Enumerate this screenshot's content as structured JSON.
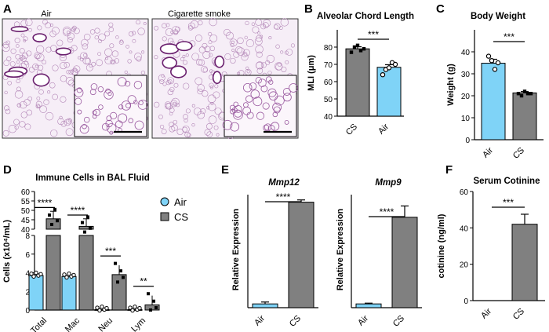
{
  "panels": {
    "A": {
      "letter": "A",
      "labels": [
        "Air",
        "Cigarette smoke"
      ]
    },
    "B": {
      "letter": "B",
      "title": "Alveolar Chord Length",
      "ylabel": "MLI (μm)",
      "ticks": [
        "40",
        "50",
        "60",
        "70",
        "80"
      ],
      "xticks": [
        "CS",
        "Air"
      ],
      "sig": "***"
    },
    "C": {
      "letter": "C",
      "title": "Body Weight",
      "ylabel": "Weight (g)",
      "ticks": [
        "0",
        "10",
        "20",
        "30",
        "40"
      ],
      "xticks": [
        "Air",
        "CS"
      ],
      "sig": "***"
    },
    "D": {
      "letter": "D",
      "title": "Immune Cells in BAL Fluid",
      "ylabel": "Cells (x10⁴/mL)",
      "ticks_upper": [
        "40",
        "45",
        "50",
        "55",
        "60"
      ],
      "ticks_lower": [
        "0",
        "2",
        "4",
        "6",
        "8"
      ],
      "xticks": [
        "Total",
        "Mac",
        "Neu",
        "Lym"
      ],
      "sigs": [
        "****",
        "****",
        "***",
        "**"
      ],
      "legend": [
        "Air",
        "CS"
      ]
    },
    "E": {
      "letter": "E",
      "title1": "Mmp12",
      "title2": "Mmp9",
      "ylabel": "Relative Expression",
      "xticks": [
        "Air",
        "CS"
      ],
      "sigs": [
        "****",
        "****"
      ]
    },
    "F": {
      "letter": "F",
      "title": "Serum Cotinine",
      "ylabel": "cotinine (ng/ml)",
      "ticks": [
        "0",
        "20",
        "40",
        "60"
      ],
      "xticks": [
        "Air",
        "CS"
      ],
      "sig": "***"
    }
  },
  "colors": {
    "air": "#7fd3f7",
    "cs": "#808080",
    "stain": "#6a1f6e",
    "tissue": "#f6eef7"
  },
  "chart_data": [
    {
      "type": "bar",
      "panel": "B",
      "title": "Alveolar Chord Length",
      "ylabel": "MLI (μm)",
      "categories": [
        "CS",
        "Air"
      ],
      "values": [
        79,
        68.3
      ],
      "errors": [
        1.2,
        1.5
      ],
      "ylim": [
        40,
        90
      ],
      "points": [
        [
          77,
          80,
          81,
          78,
          79
        ],
        [
          64,
          67,
          68,
          71,
          70
        ]
      ]
    },
    {
      "type": "bar",
      "panel": "C",
      "title": "Body Weight",
      "ylabel": "Weight (g)",
      "categories": [
        "Air",
        "CS"
      ],
      "values": [
        34.8,
        21.3
      ],
      "errors": [
        1.8,
        0.6
      ],
      "ylim": [
        0,
        50
      ],
      "points": [
        [
          38,
          36,
          32,
          35
        ],
        [
          21,
          20,
          22,
          21,
          21
        ]
      ]
    },
    {
      "type": "bar",
      "panel": "D",
      "title": "Immune Cells in BAL Fluid",
      "ylabel": "Cells (x10⁴/mL)",
      "categories": [
        "Total",
        "Mac",
        "Neu",
        "Lym"
      ],
      "series": [
        {
          "name": "Air",
          "values": [
            3.7,
            3.6,
            0.05,
            0.05
          ]
        },
        {
          "name": "CS",
          "values": [
            45.5,
            41.5,
            3.8,
            0.55
          ]
        }
      ],
      "ylim": [
        0,
        60
      ]
    },
    {
      "type": "bar",
      "panel": "E",
      "title": "Mmp12",
      "ylabel": "Relative Expression",
      "categories": [
        "Air",
        "CS"
      ],
      "values": [
        1,
        28
      ],
      "errors": [
        0.5,
        0.6
      ],
      "ylim": [
        0,
        30
      ]
    },
    {
      "type": "bar",
      "panel": "E",
      "title": "Mmp9",
      "ylabel": "Relative Expression",
      "categories": [
        "Air",
        "CS"
      ],
      "values": [
        1,
        24
      ],
      "errors": [
        0.2,
        3
      ],
      "ylim": [
        0,
        30
      ]
    },
    {
      "type": "bar",
      "panel": "F",
      "title": "Serum Cotinine",
      "ylabel": "cotinine (ng/ml)",
      "categories": [
        "Air",
        "CS"
      ],
      "values": [
        0,
        42
      ],
      "errors": [
        0,
        5.5
      ],
      "ylim": [
        0,
        60
      ]
    }
  ]
}
